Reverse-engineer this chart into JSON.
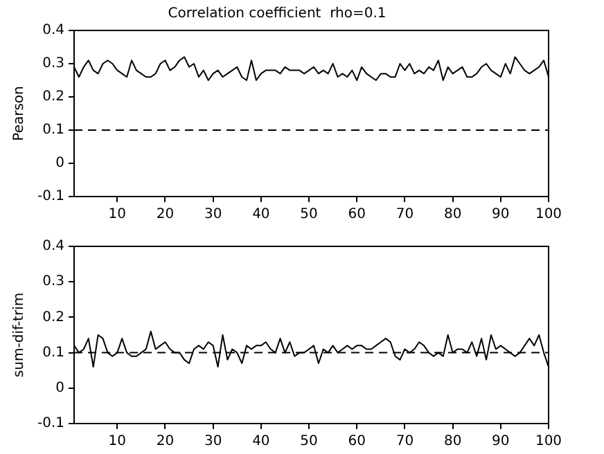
{
  "chart_data": [
    {
      "type": "line",
      "title": "Correlation coefficient  rho=0.1",
      "ylabel": "Pearson",
      "color": "#000000",
      "x": [
        1,
        2,
        3,
        4,
        5,
        6,
        7,
        8,
        9,
        10,
        11,
        12,
        13,
        14,
        15,
        16,
        17,
        18,
        19,
        20,
        21,
        22,
        23,
        24,
        25,
        26,
        27,
        28,
        29,
        30,
        31,
        32,
        33,
        34,
        35,
        36,
        37,
        38,
        39,
        40,
        41,
        42,
        43,
        44,
        45,
        46,
        47,
        48,
        49,
        50,
        51,
        52,
        53,
        54,
        55,
        56,
        57,
        58,
        59,
        60,
        61,
        62,
        63,
        64,
        65,
        66,
        67,
        68,
        69,
        70,
        71,
        72,
        73,
        74,
        75,
        76,
        77,
        78,
        79,
        80,
        81,
        82,
        83,
        84,
        85,
        86,
        87,
        88,
        89,
        90,
        91,
        92,
        93,
        94,
        95,
        96,
        97,
        98,
        99,
        100
      ],
      "values": [
        0.29,
        0.26,
        0.29,
        0.31,
        0.28,
        0.27,
        0.3,
        0.31,
        0.3,
        0.28,
        0.27,
        0.26,
        0.31,
        0.28,
        0.27,
        0.26,
        0.26,
        0.27,
        0.3,
        0.31,
        0.28,
        0.29,
        0.31,
        0.32,
        0.29,
        0.3,
        0.26,
        0.28,
        0.25,
        0.27,
        0.28,
        0.26,
        0.27,
        0.28,
        0.29,
        0.26,
        0.25,
        0.31,
        0.25,
        0.27,
        0.28,
        0.28,
        0.28,
        0.27,
        0.29,
        0.28,
        0.28,
        0.28,
        0.27,
        0.28,
        0.29,
        0.27,
        0.28,
        0.27,
        0.3,
        0.26,
        0.27,
        0.26,
        0.28,
        0.25,
        0.29,
        0.27,
        0.26,
        0.25,
        0.27,
        0.27,
        0.26,
        0.26,
        0.3,
        0.28,
        0.3,
        0.27,
        0.28,
        0.27,
        0.29,
        0.28,
        0.31,
        0.25,
        0.29,
        0.27,
        0.28,
        0.29,
        0.26,
        0.26,
        0.27,
        0.29,
        0.3,
        0.28,
        0.27,
        0.26,
        0.3,
        0.27,
        0.32,
        0.3,
        0.28,
        0.27,
        0.28,
        0.29,
        0.31,
        0.26
      ],
      "xlim": [
        1,
        100
      ],
      "xticks": [
        10,
        20,
        30,
        40,
        50,
        60,
        70,
        80,
        90,
        100
      ],
      "ylim": [
        -0.1,
        0.4
      ],
      "yticks": [
        -0.1,
        0,
        0.1,
        0.2,
        0.3,
        0.4
      ],
      "ref_lines": [
        {
          "axis": "y",
          "value": 0.1,
          "color": "#000000",
          "line_style": "dashed"
        }
      ]
    },
    {
      "type": "line",
      "ylabel": "sum-dif-trim",
      "color": "#000000",
      "x": [
        1,
        2,
        3,
        4,
        5,
        6,
        7,
        8,
        9,
        10,
        11,
        12,
        13,
        14,
        15,
        16,
        17,
        18,
        19,
        20,
        21,
        22,
        23,
        24,
        25,
        26,
        27,
        28,
        29,
        30,
        31,
        32,
        33,
        34,
        35,
        36,
        37,
        38,
        39,
        40,
        41,
        42,
        43,
        44,
        45,
        46,
        47,
        48,
        49,
        50,
        51,
        52,
        53,
        54,
        55,
        56,
        57,
        58,
        59,
        60,
        61,
        62,
        63,
        64,
        65,
        66,
        67,
        68,
        69,
        70,
        71,
        72,
        73,
        74,
        75,
        76,
        77,
        78,
        79,
        80,
        81,
        82,
        83,
        84,
        85,
        86,
        87,
        88,
        89,
        90,
        91,
        92,
        93,
        94,
        95,
        96,
        97,
        98,
        99,
        100
      ],
      "values": [
        0.12,
        0.1,
        0.11,
        0.14,
        0.06,
        0.15,
        0.14,
        0.1,
        0.09,
        0.1,
        0.14,
        0.1,
        0.09,
        0.09,
        0.1,
        0.11,
        0.16,
        0.11,
        0.12,
        0.13,
        0.11,
        0.1,
        0.1,
        0.08,
        0.07,
        0.11,
        0.12,
        0.11,
        0.13,
        0.12,
        0.06,
        0.15,
        0.08,
        0.11,
        0.1,
        0.07,
        0.12,
        0.11,
        0.12,
        0.12,
        0.13,
        0.11,
        0.1,
        0.14,
        0.1,
        0.13,
        0.09,
        0.1,
        0.1,
        0.11,
        0.12,
        0.07,
        0.11,
        0.1,
        0.12,
        0.1,
        0.11,
        0.12,
        0.11,
        0.12,
        0.12,
        0.11,
        0.11,
        0.12,
        0.13,
        0.14,
        0.13,
        0.09,
        0.08,
        0.11,
        0.1,
        0.11,
        0.13,
        0.12,
        0.1,
        0.09,
        0.1,
        0.09,
        0.15,
        0.1,
        0.11,
        0.11,
        0.1,
        0.13,
        0.09,
        0.14,
        0.08,
        0.15,
        0.11,
        0.12,
        0.11,
        0.1,
        0.09,
        0.1,
        0.12,
        0.14,
        0.12,
        0.15,
        0.1,
        0.06
      ],
      "xlim": [
        1,
        100
      ],
      "xticks": [
        10,
        20,
        30,
        40,
        50,
        60,
        70,
        80,
        90,
        100
      ],
      "ylim": [
        -0.1,
        0.4
      ],
      "yticks": [
        -0.1,
        0,
        0.1,
        0.2,
        0.3,
        0.4
      ],
      "ref_lines": [
        {
          "axis": "y",
          "value": 0.1,
          "color": "#000000",
          "line_style": "dashed"
        }
      ]
    }
  ]
}
